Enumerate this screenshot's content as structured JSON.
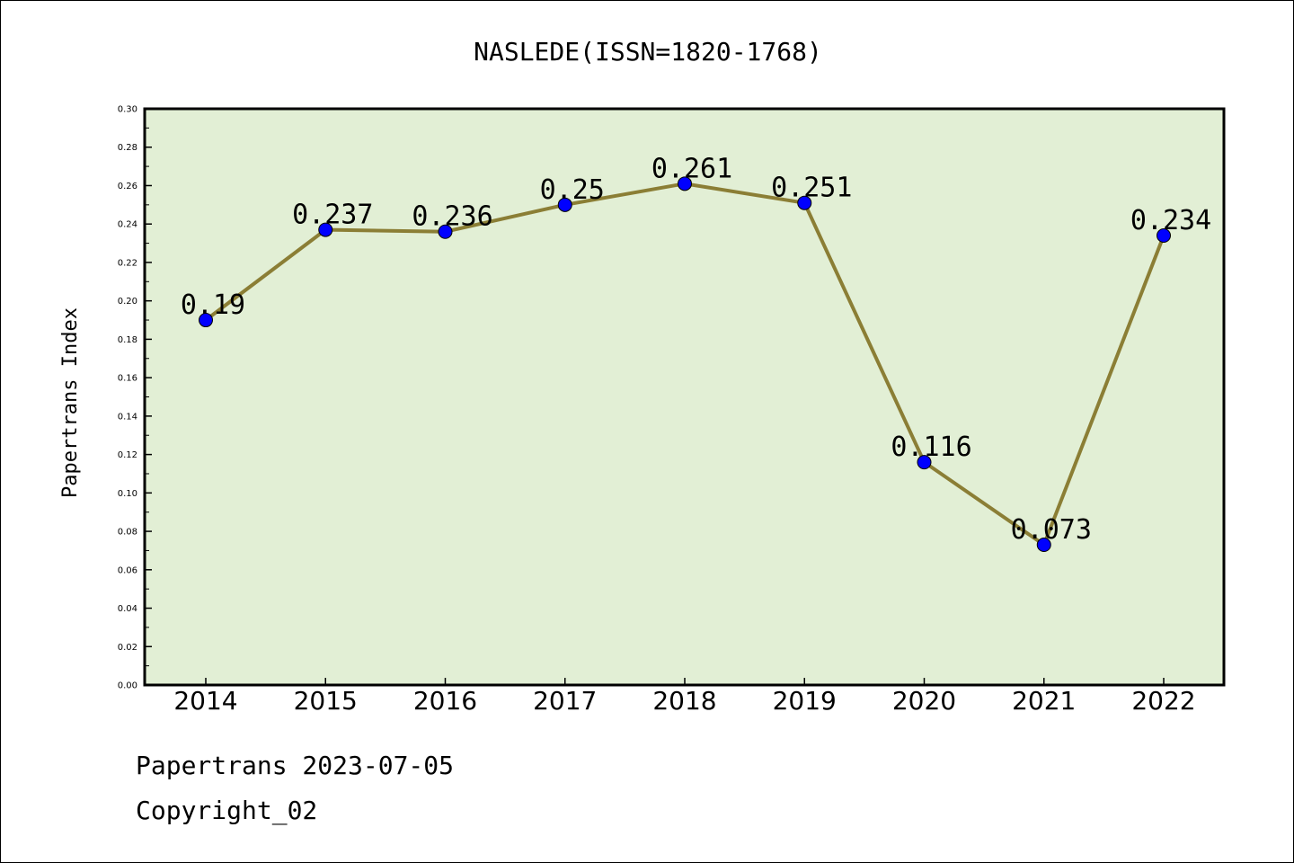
{
  "chart_data": {
    "type": "line",
    "title": "NASLEDE(ISSN=1820-1768)",
    "xlabel": "",
    "ylabel": "Papertrans Index",
    "categories": [
      "2014",
      "2015",
      "2016",
      "2017",
      "2018",
      "2019",
      "2020",
      "2021",
      "2022"
    ],
    "series": [
      {
        "values": [
          0.19,
          0.237,
          0.236,
          0.25,
          0.261,
          0.251,
          0.116,
          0.073,
          0.234
        ]
      }
    ],
    "data_labels": [
      "0.19",
      "0.237",
      "0.236",
      "0.25",
      "0.261",
      "0.251",
      "0.116",
      "0.073",
      "0.234"
    ],
    "ylim": [
      0,
      0.3
    ],
    "yticks": [
      "0.00",
      "0.02",
      "0.04",
      "0.06",
      "0.08",
      "0.10",
      "0.12",
      "0.14",
      "0.16",
      "0.18",
      "0.20",
      "0.22",
      "0.24",
      "0.26",
      "0.28",
      "0.30"
    ],
    "grid": false,
    "legend": "none",
    "colors": {
      "plot_background": "#e2efd5",
      "line": "#8b7e35",
      "marker": "#0000ff"
    }
  },
  "footer": {
    "line1": "Papertrans 2023-07-05",
    "line2": "Copyright_02"
  }
}
